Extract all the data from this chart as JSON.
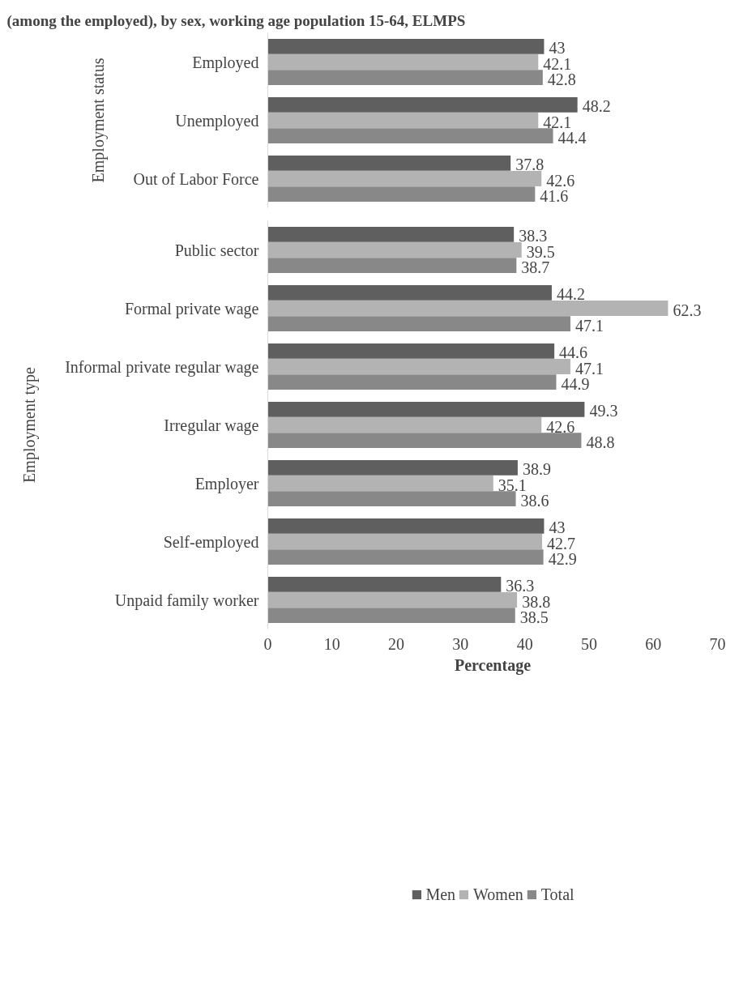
{
  "chart_data": [
    {
      "type": "bar",
      "orientation": "horizontal",
      "title": "(among the employed), by sex, working age population 15-64, ELMPS",
      "ylabel": "Employment status",
      "categories": [
        "Employed",
        "Unemployed",
        "Out of Labor Force"
      ],
      "series": [
        {
          "color": "#5f5f5f",
          "values": [
            43,
            48.2,
            37.8
          ]
        },
        {
          "color": "#b3b3b3",
          "values": [
            42.1,
            42.1,
            42.6
          ]
        },
        {
          "color": "#888888",
          "values": [
            42.8,
            44.4,
            41.6
          ]
        }
      ],
      "xlim": [
        0,
        70
      ],
      "tick_labels": "y",
      "data_labels": true
    },
    {
      "type": "bar",
      "orientation": "horizontal",
      "xlabel": "Percentage",
      "ylabel": "Employment type",
      "categories": [
        "Public sector",
        "Formal private wage",
        "Informal private regular wage",
        "Irregular wage",
        "Employer",
        "Self-employed",
        "Unpaid family worker"
      ],
      "series": [
        {
          "name": "Men",
          "color": "#5f5f5f",
          "values": [
            38.3,
            44.2,
            44.6,
            49.3,
            38.9,
            43,
            36.3
          ]
        },
        {
          "name": "Women",
          "color": "#b3b3b3",
          "values": [
            39.5,
            62.3,
            47.1,
            42.6,
            35.1,
            42.7,
            38.8
          ]
        },
        {
          "name": "Total",
          "color": "#888888",
          "values": [
            38.7,
            47.1,
            44.9,
            48.8,
            38.6,
            42.9,
            38.5
          ]
        }
      ],
      "xlim": [
        0,
        70
      ],
      "xticks": [
        0,
        10,
        20,
        30,
        40,
        50,
        60,
        70
      ],
      "data_labels": true,
      "legend": "bottom"
    }
  ]
}
